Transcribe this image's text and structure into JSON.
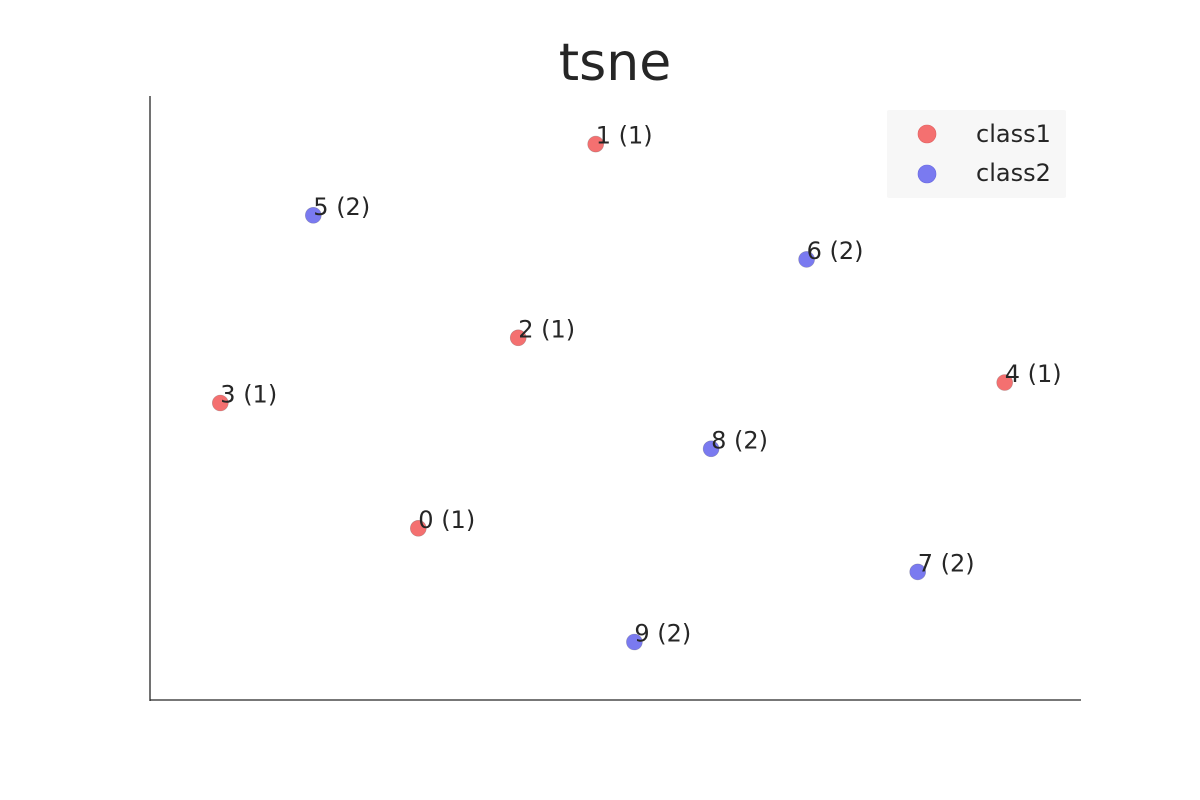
{
  "chart_data": {
    "type": "scatter",
    "title": "tsne",
    "xlabel": "",
    "ylabel": "",
    "grid": false,
    "legend_position": "top-right",
    "xlim": [
      0,
      100
    ],
    "ylim": [
      0,
      100
    ],
    "colors": {
      "class1": "#f47070",
      "class2": "#7a7af0"
    },
    "series": [
      {
        "name": "class1",
        "points": [
          {
            "label": "0 (1)",
            "x": 27.1,
            "y": 26.4
          },
          {
            "label": "1 (1)",
            "x": 47.7,
            "y": 96.0
          },
          {
            "label": "2 (1)",
            "x": 38.7,
            "y": 60.9
          },
          {
            "label": "3 (1)",
            "x": 4.1,
            "y": 49.1
          },
          {
            "label": "4 (1)",
            "x": 95.2,
            "y": 52.8
          }
        ]
      },
      {
        "name": "class2",
        "points": [
          {
            "label": "5 (2)",
            "x": 14.9,
            "y": 83.1
          },
          {
            "label": "6 (2)",
            "x": 72.2,
            "y": 75.1
          },
          {
            "label": "7 (2)",
            "x": 85.1,
            "y": 18.5
          },
          {
            "label": "8 (2)",
            "x": 61.1,
            "y": 40.8
          },
          {
            "label": "9 (2)",
            "x": 52.2,
            "y": 5.8
          }
        ]
      }
    ]
  }
}
